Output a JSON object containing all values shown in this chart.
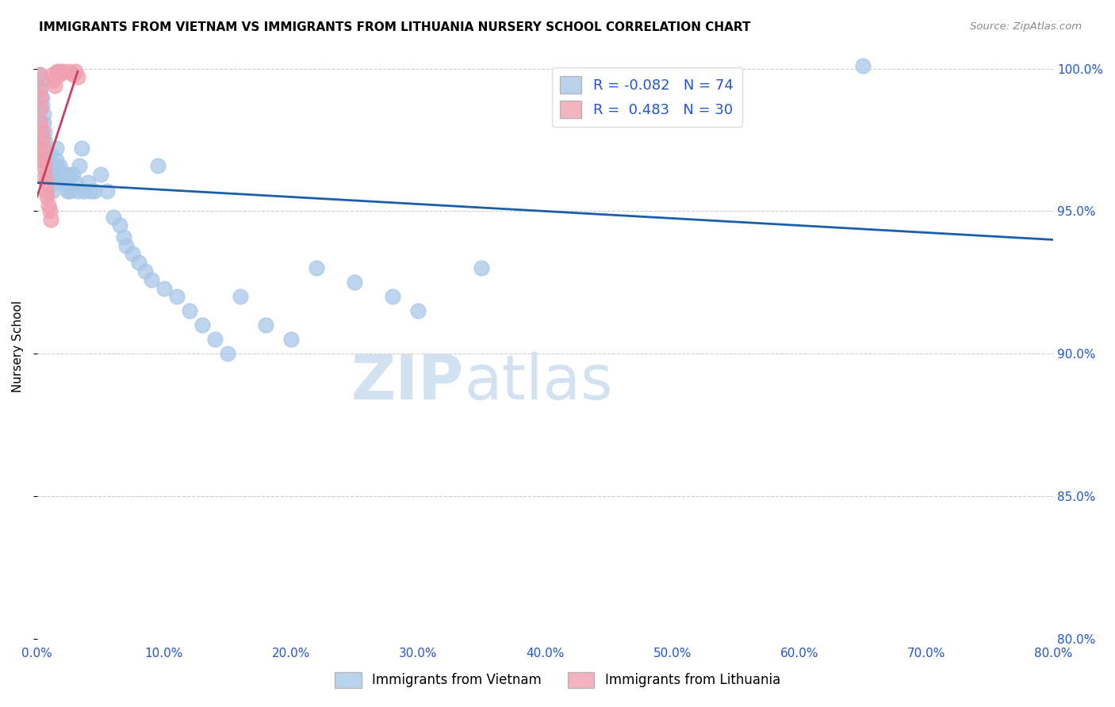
{
  "title": "IMMIGRANTS FROM VIETNAM VS IMMIGRANTS FROM LITHUANIA NURSERY SCHOOL CORRELATION CHART",
  "source": "Source: ZipAtlas.com",
  "ylabel": "Nursery School",
  "xlabel": "",
  "xlim": [
    0.0,
    0.8
  ],
  "ylim": [
    0.8,
    1.005
  ],
  "xtick_labels": [
    "0.0%",
    "10.0%",
    "20.0%",
    "30.0%",
    "40.0%",
    "50.0%",
    "60.0%",
    "70.0%",
    "80.0%"
  ],
  "xtick_vals": [
    0.0,
    0.1,
    0.2,
    0.3,
    0.4,
    0.5,
    0.6,
    0.7,
    0.8
  ],
  "ytick_labels": [
    "80.0%",
    "85.0%",
    "90.0%",
    "95.0%",
    "100.0%"
  ],
  "ytick_vals": [
    0.8,
    0.85,
    0.9,
    0.95,
    1.0
  ],
  "legend_r_blue": "-0.082",
  "legend_n_blue": "74",
  "legend_r_pink": "0.483",
  "legend_n_pink": "30",
  "blue_color": "#a8c8e8",
  "pink_color": "#f0a0b0",
  "trend_blue_color": "#1a5fa8",
  "trend_pink_color": "#c94060",
  "watermark": "ZIPatlas",
  "blue_trend_x": [
    0.0,
    0.8
  ],
  "blue_trend_y": [
    0.96,
    0.94
  ],
  "pink_trend_x": [
    0.0,
    0.032
  ],
  "pink_trend_y": [
    0.955,
    0.999
  ],
  "blue_x": [
    0.002,
    0.003,
    0.003,
    0.004,
    0.004,
    0.005,
    0.005,
    0.006,
    0.006,
    0.007,
    0.007,
    0.008,
    0.008,
    0.009,
    0.009,
    0.01,
    0.01,
    0.011,
    0.011,
    0.012,
    0.012,
    0.013,
    0.013,
    0.014,
    0.015,
    0.015,
    0.016,
    0.016,
    0.017,
    0.018,
    0.018,
    0.019,
    0.02,
    0.021,
    0.022,
    0.023,
    0.024,
    0.025,
    0.026,
    0.028,
    0.03,
    0.032,
    0.033,
    0.035,
    0.037,
    0.04,
    0.042,
    0.045,
    0.05,
    0.055,
    0.06,
    0.065,
    0.068,
    0.07,
    0.075,
    0.08,
    0.085,
    0.09,
    0.095,
    0.1,
    0.11,
    0.12,
    0.13,
    0.14,
    0.15,
    0.16,
    0.18,
    0.2,
    0.22,
    0.25,
    0.28,
    0.3,
    0.35,
    0.65
  ],
  "blue_y": [
    0.998,
    0.996,
    0.993,
    0.99,
    0.987,
    0.984,
    0.981,
    0.978,
    0.975,
    0.972,
    0.969,
    0.966,
    0.963,
    0.96,
    0.968,
    0.964,
    0.97,
    0.966,
    0.963,
    0.96,
    0.957,
    0.966,
    0.963,
    0.96,
    0.972,
    0.968,
    0.965,
    0.962,
    0.963,
    0.966,
    0.963,
    0.96,
    0.963,
    0.96,
    0.963,
    0.96,
    0.957,
    0.963,
    0.957,
    0.963,
    0.96,
    0.957,
    0.966,
    0.972,
    0.957,
    0.96,
    0.957,
    0.957,
    0.963,
    0.957,
    0.948,
    0.945,
    0.941,
    0.938,
    0.935,
    0.932,
    0.929,
    0.926,
    0.966,
    0.923,
    0.92,
    0.915,
    0.91,
    0.905,
    0.9,
    0.92,
    0.91,
    0.905,
    0.93,
    0.925,
    0.92,
    0.915,
    0.93,
    1.001
  ],
  "pink_x": [
    0.001,
    0.001,
    0.002,
    0.002,
    0.003,
    0.003,
    0.003,
    0.004,
    0.004,
    0.005,
    0.005,
    0.006,
    0.006,
    0.007,
    0.007,
    0.008,
    0.009,
    0.01,
    0.011,
    0.012,
    0.013,
    0.014,
    0.016,
    0.017,
    0.018,
    0.02,
    0.025,
    0.028,
    0.03,
    0.032
  ],
  "pink_y": [
    0.972,
    0.968,
    0.998,
    0.993,
    0.99,
    0.986,
    0.981,
    0.978,
    0.975,
    0.972,
    0.968,
    0.965,
    0.962,
    0.96,
    0.957,
    0.955,
    0.952,
    0.95,
    0.947,
    0.998,
    0.996,
    0.994,
    0.999,
    0.999,
    0.998,
    0.999,
    0.999,
    0.998,
    0.999,
    0.997
  ]
}
